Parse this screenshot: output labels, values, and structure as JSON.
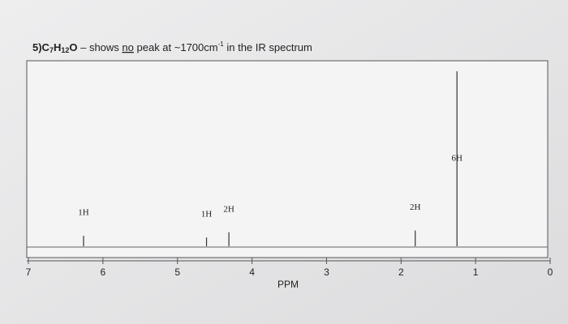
{
  "chart_data": {
    "type": "spectrum",
    "title_parts": [
      "5)C",
      "7",
      "H",
      "12",
      "O",
      " – shows ",
      "no",
      " peak at ~1700cm",
      "-1",
      " in the IR spectrum"
    ],
    "x_label": "PPM",
    "xlim": [
      7,
      0
    ],
    "xticks": [
      7,
      6,
      5,
      4,
      3,
      2,
      1,
      0
    ],
    "ylim": [
      0,
      100
    ],
    "x": [
      6.26,
      4.61,
      4.31,
      1.81,
      1.25
    ],
    "values": [
      6,
      5,
      8,
      9,
      100
    ],
    "peak_labels": [
      "1H",
      "1H",
      "2H",
      "2H",
      "6H"
    ],
    "color": "#333333"
  }
}
